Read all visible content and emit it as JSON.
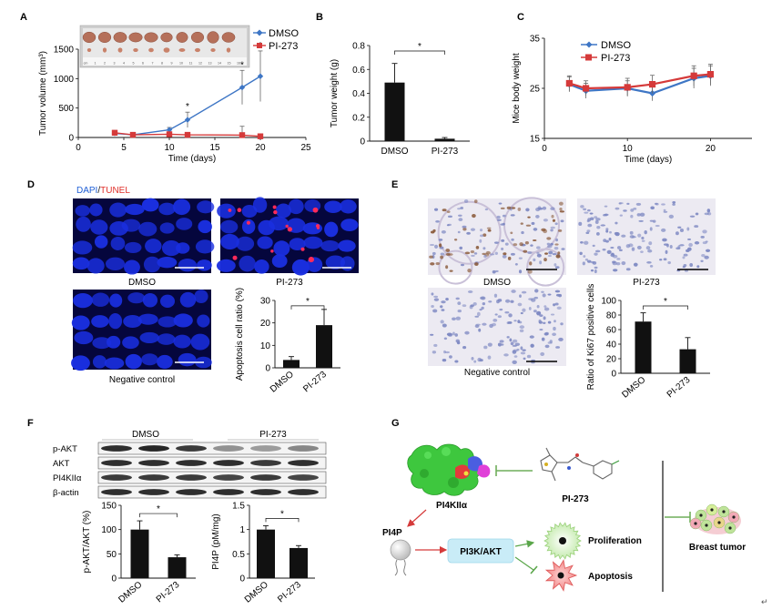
{
  "panels": {
    "A": "A",
    "B": "B",
    "C": "C",
    "D": "D",
    "E": "E",
    "F": "F",
    "G": "G"
  },
  "colors": {
    "dmso": "#3e76c5",
    "pi273": "#d53a3a",
    "bar": "#111111",
    "fluor_bg": "#05063d",
    "nuclei": "#1a2fe0",
    "tunel": "#ff2a5a",
    "ihc_bg": "#eceaf2",
    "pi3k_box": "#c9ecf7"
  },
  "chart_data": [
    {
      "id": "A",
      "type": "line",
      "xlabel": "Time (days)",
      "ylabel": "Tumor volume (mm³)",
      "xlim": [
        0,
        25
      ],
      "ylim": [
        0,
        1500
      ],
      "xticks": [
        "0",
        "5",
        "10",
        "15",
        "20",
        "25"
      ],
      "yticks": [
        "0",
        "500",
        "1000",
        "1500"
      ],
      "significance": [
        "*",
        "*",
        "*"
      ],
      "x": [
        4,
        6,
        10,
        12,
        18,
        20
      ],
      "series": [
        {
          "name": "DMSO",
          "values": [
            70,
            45,
            130,
            300,
            850,
            1040
          ],
          "err": [
            30,
            20,
            40,
            130,
            290,
            430
          ]
        },
        {
          "name": "PI-273",
          "values": [
            80,
            45,
            55,
            45,
            40,
            20
          ],
          "err": [
            40,
            20,
            30,
            30,
            150,
            30
          ]
        }
      ]
    },
    {
      "id": "B",
      "type": "bar",
      "xlabel": "",
      "ylabel": "Tumor weight (g)",
      "ylim": [
        0,
        0.8
      ],
      "yticks": [
        "0",
        "0.2",
        "0.4",
        "0.6",
        "0.8"
      ],
      "categories": [
        "DMSO",
        "PI-273"
      ],
      "values": [
        0.49,
        0.02
      ],
      "err": [
        0.16,
        0.01
      ],
      "significance": "*"
    },
    {
      "id": "C",
      "type": "line",
      "xlabel": "Time (days)",
      "ylabel": "Mice body weight",
      "xlim": [
        0,
        25
      ],
      "ylim": [
        15,
        35
      ],
      "xticks": [
        "0",
        "10",
        "20"
      ],
      "yticks": [
        "15",
        "25",
        "35"
      ],
      "x": [
        3,
        5,
        10,
        13,
        18,
        20
      ],
      "series": [
        {
          "name": "DMSO",
          "values": [
            25.8,
            24.5,
            25.0,
            24.0,
            27.0,
            27.5
          ],
          "err": [
            1.5,
            1.5,
            1.5,
            1.5,
            2.0,
            2.0
          ]
        },
        {
          "name": "PI-273",
          "values": [
            26.0,
            25.0,
            25.2,
            25.8,
            27.5,
            27.8
          ],
          "err": [
            1.5,
            1.5,
            1.8,
            1.8,
            2.0,
            2.0
          ]
        }
      ]
    },
    {
      "id": "D",
      "type": "bar",
      "xlabel": "",
      "ylabel": "Apoptosis cell ratio (%)",
      "ylim": [
        0,
        30
      ],
      "yticks": [
        "0",
        "10",
        "20",
        "30"
      ],
      "categories": [
        "DMSO",
        "PI-273"
      ],
      "values": [
        3.5,
        19
      ],
      "err": [
        1.5,
        7
      ],
      "significance": "*"
    },
    {
      "id": "E",
      "type": "bar",
      "xlabel": "",
      "ylabel": "Ratio of Ki67 positive cells",
      "ylim": [
        0,
        100
      ],
      "yticks": [
        "0",
        "20",
        "40",
        "60",
        "80",
        "100"
      ],
      "categories": [
        "DMSO",
        "PI-273"
      ],
      "values": [
        71,
        33
      ],
      "err": [
        12,
        16
      ],
      "significance": "*"
    },
    {
      "id": "F1",
      "type": "bar",
      "xlabel": "",
      "ylabel": "p-AKT/AKT (%)",
      "ylim": [
        0,
        150
      ],
      "yticks": [
        "0",
        "50",
        "100",
        "150"
      ],
      "categories": [
        "DMSO",
        "PI-273"
      ],
      "values": [
        100,
        43
      ],
      "err": [
        18,
        5
      ],
      "significance": "*"
    },
    {
      "id": "F2",
      "type": "bar",
      "xlabel": "",
      "ylabel": "PI4P (pM/mg)",
      "ylim": [
        0,
        1.5
      ],
      "yticks": [
        "0",
        "0.5",
        "1",
        "1.5"
      ],
      "categories": [
        "DMSO",
        "PI-273"
      ],
      "values": [
        1.0,
        0.62
      ],
      "err": [
        0.08,
        0.05
      ],
      "significance": "*"
    }
  ],
  "panelA": {
    "ruler_ticks": [
      "cm",
      "1",
      "2",
      "3",
      "4",
      "5",
      "6",
      "7",
      "8",
      "9",
      "10",
      "11",
      "12",
      "13",
      "14",
      "15",
      "16"
    ]
  },
  "panelD": {
    "legend_dapi": "DAPI",
    "legend_sep": "/",
    "legend_tunel": "TUNEL",
    "img_dmso": "DMSO",
    "img_pi273": "PI-273",
    "img_negative": "Negative control"
  },
  "panelE": {
    "img_dmso": "DMSO",
    "img_pi273": "PI-273",
    "img_negative": "Negative control"
  },
  "panelF": {
    "group_dmso": "DMSO",
    "group_pi273": "PI-273",
    "bands": [
      "p-AKT",
      "AKT",
      "PI4KIIα",
      "β-actin"
    ]
  },
  "panelG": {
    "protein": "PI4KIIα",
    "compound": "PI-273",
    "lipid": "PI4P",
    "pathway": "PI3K/AKT",
    "proliferation": "Proliferation",
    "apoptosis": "Apoptosis",
    "tumor": "Breast tumor"
  },
  "footnote": "↵"
}
